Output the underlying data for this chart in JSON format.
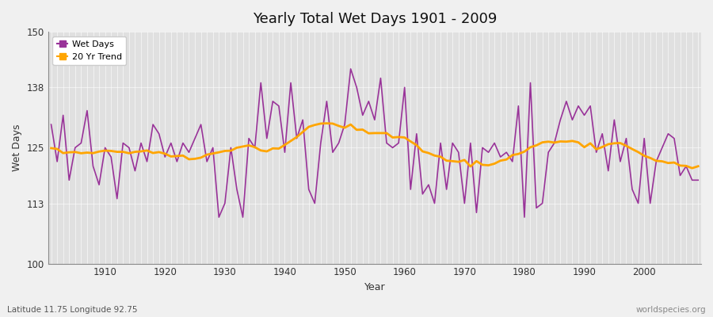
{
  "title": "Yearly Total Wet Days 1901 - 2009",
  "xlabel": "Year",
  "ylabel": "Wet Days",
  "footnote_left": "Latitude 11.75 Longitude 92.75",
  "footnote_right": "worldspecies.org",
  "ylim": [
    100,
    150
  ],
  "yticks": [
    100,
    113,
    125,
    138,
    150
  ],
  "line_color": "#993399",
  "trend_color": "#FFA500",
  "bg_color": "#F0F0F0",
  "plot_bg_color": "#E0E0E0",
  "legend_entries": [
    "Wet Days",
    "20 Yr Trend"
  ],
  "xtick_years": [
    1910,
    1920,
    1930,
    1940,
    1950,
    1960,
    1970,
    1980,
    1990,
    2000
  ],
  "years": [
    1901,
    1902,
    1903,
    1904,
    1905,
    1906,
    1907,
    1908,
    1909,
    1910,
    1911,
    1912,
    1913,
    1914,
    1915,
    1916,
    1917,
    1918,
    1919,
    1920,
    1921,
    1922,
    1923,
    1924,
    1925,
    1926,
    1927,
    1928,
    1929,
    1930,
    1931,
    1932,
    1933,
    1934,
    1935,
    1936,
    1937,
    1938,
    1939,
    1940,
    1941,
    1942,
    1943,
    1944,
    1945,
    1946,
    1947,
    1948,
    1949,
    1950,
    1951,
    1952,
    1953,
    1954,
    1955,
    1956,
    1957,
    1958,
    1959,
    1960,
    1961,
    1962,
    1963,
    1964,
    1965,
    1966,
    1967,
    1968,
    1969,
    1970,
    1971,
    1972,
    1973,
    1974,
    1975,
    1976,
    1977,
    1978,
    1979,
    1980,
    1981,
    1982,
    1983,
    1984,
    1985,
    1986,
    1987,
    1988,
    1989,
    1990,
    1991,
    1992,
    1993,
    1994,
    1995,
    1996,
    1997,
    1998,
    1999,
    2000,
    2001,
    2002,
    2003,
    2004,
    2005,
    2006,
    2007,
    2008,
    2009
  ],
  "wet_days": [
    130,
    122,
    132,
    118,
    125,
    126,
    133,
    121,
    117,
    125,
    123,
    114,
    126,
    125,
    120,
    126,
    122,
    130,
    128,
    123,
    126,
    122,
    126,
    124,
    127,
    130,
    122,
    125,
    110,
    113,
    125,
    116,
    110,
    127,
    125,
    139,
    127,
    135,
    134,
    124,
    139,
    127,
    131,
    116,
    113,
    126,
    135,
    124,
    126,
    130,
    142,
    138,
    132,
    135,
    131,
    140,
    126,
    125,
    126,
    138,
    116,
    128,
    115,
    117,
    113,
    126,
    116,
    126,
    124,
    113,
    126,
    111,
    125,
    124,
    126,
    123,
    124,
    122,
    134,
    110,
    139,
    112,
    113,
    124,
    126,
    131,
    135,
    131,
    134,
    132,
    134,
    124,
    128,
    120,
    131,
    122,
    127,
    116,
    113,
    127,
    113,
    122,
    125,
    128,
    127,
    119,
    121,
    118,
    118
  ]
}
